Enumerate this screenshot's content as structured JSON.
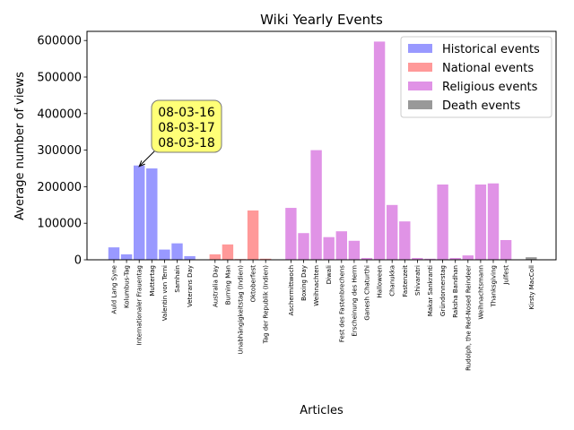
{
  "chart_data": {
    "type": "bar",
    "title": "Wiki Yearly Events",
    "xlabel": "Articles",
    "ylabel": "Average number of views",
    "ylim": [
      0,
      625000
    ],
    "yticks": [
      0,
      100000,
      200000,
      300000,
      400000,
      500000,
      600000
    ],
    "legend": {
      "placement": "top-right"
    },
    "grid": false,
    "series": [
      {
        "name": "Historical events",
        "color": "#9999ff",
        "categories": [
          "Auld Lang Syne",
          "Kolumbus-Tag",
          "Internationaler Frauentag",
          "Muttertag",
          "Valentin von Terni",
          "Samhain",
          "Veterans Day"
        ],
        "values": [
          34000,
          15000,
          258000,
          250000,
          28000,
          45000,
          10000
        ]
      },
      {
        "name": "National events",
        "color": "#ff9999",
        "categories": [
          "Australia Day",
          "Burning Man",
          "Unabhängigkeitstag (Indien)",
          "Oktoberfest",
          "Tag der Republik (Indien)"
        ],
        "values": [
          15000,
          42000,
          2000,
          135000,
          3000
        ]
      },
      {
        "name": "Religious events",
        "color": "#e093e6",
        "categories": [
          "Aschermittwoch",
          "Boxing Day",
          "Weihnachten",
          "Diwali",
          "Fest des Fastenbrechens",
          "Erscheinung des Herrn",
          "Ganesh Chaturthi",
          "Halloween",
          "Chanukka",
          "Fastenzeit",
          "Shivaratri",
          "Makar Sankranti",
          "Gründonnerstag",
          "Raksha Bandhan",
          "Rudolph, the Red-Nosed Reindeer",
          "Weihnachtsmann",
          "Thanksgiving",
          "Julfest"
        ],
        "values": [
          142000,
          73000,
          300000,
          62000,
          78000,
          52000,
          5000,
          597000,
          150000,
          105000,
          5000,
          3000,
          206000,
          5000,
          12000,
          206000,
          209000,
          54000
        ]
      },
      {
        "name": "Death events",
        "color": "#999999",
        "categories": [
          "Kirsty MacColl"
        ],
        "values": [
          7000
        ]
      }
    ],
    "annotation": {
      "lines": [
        "08-03-16",
        "08-03-17",
        "08-03-18"
      ],
      "target": "Internationaler Frauentag",
      "box_color": "#ffff77"
    }
  }
}
